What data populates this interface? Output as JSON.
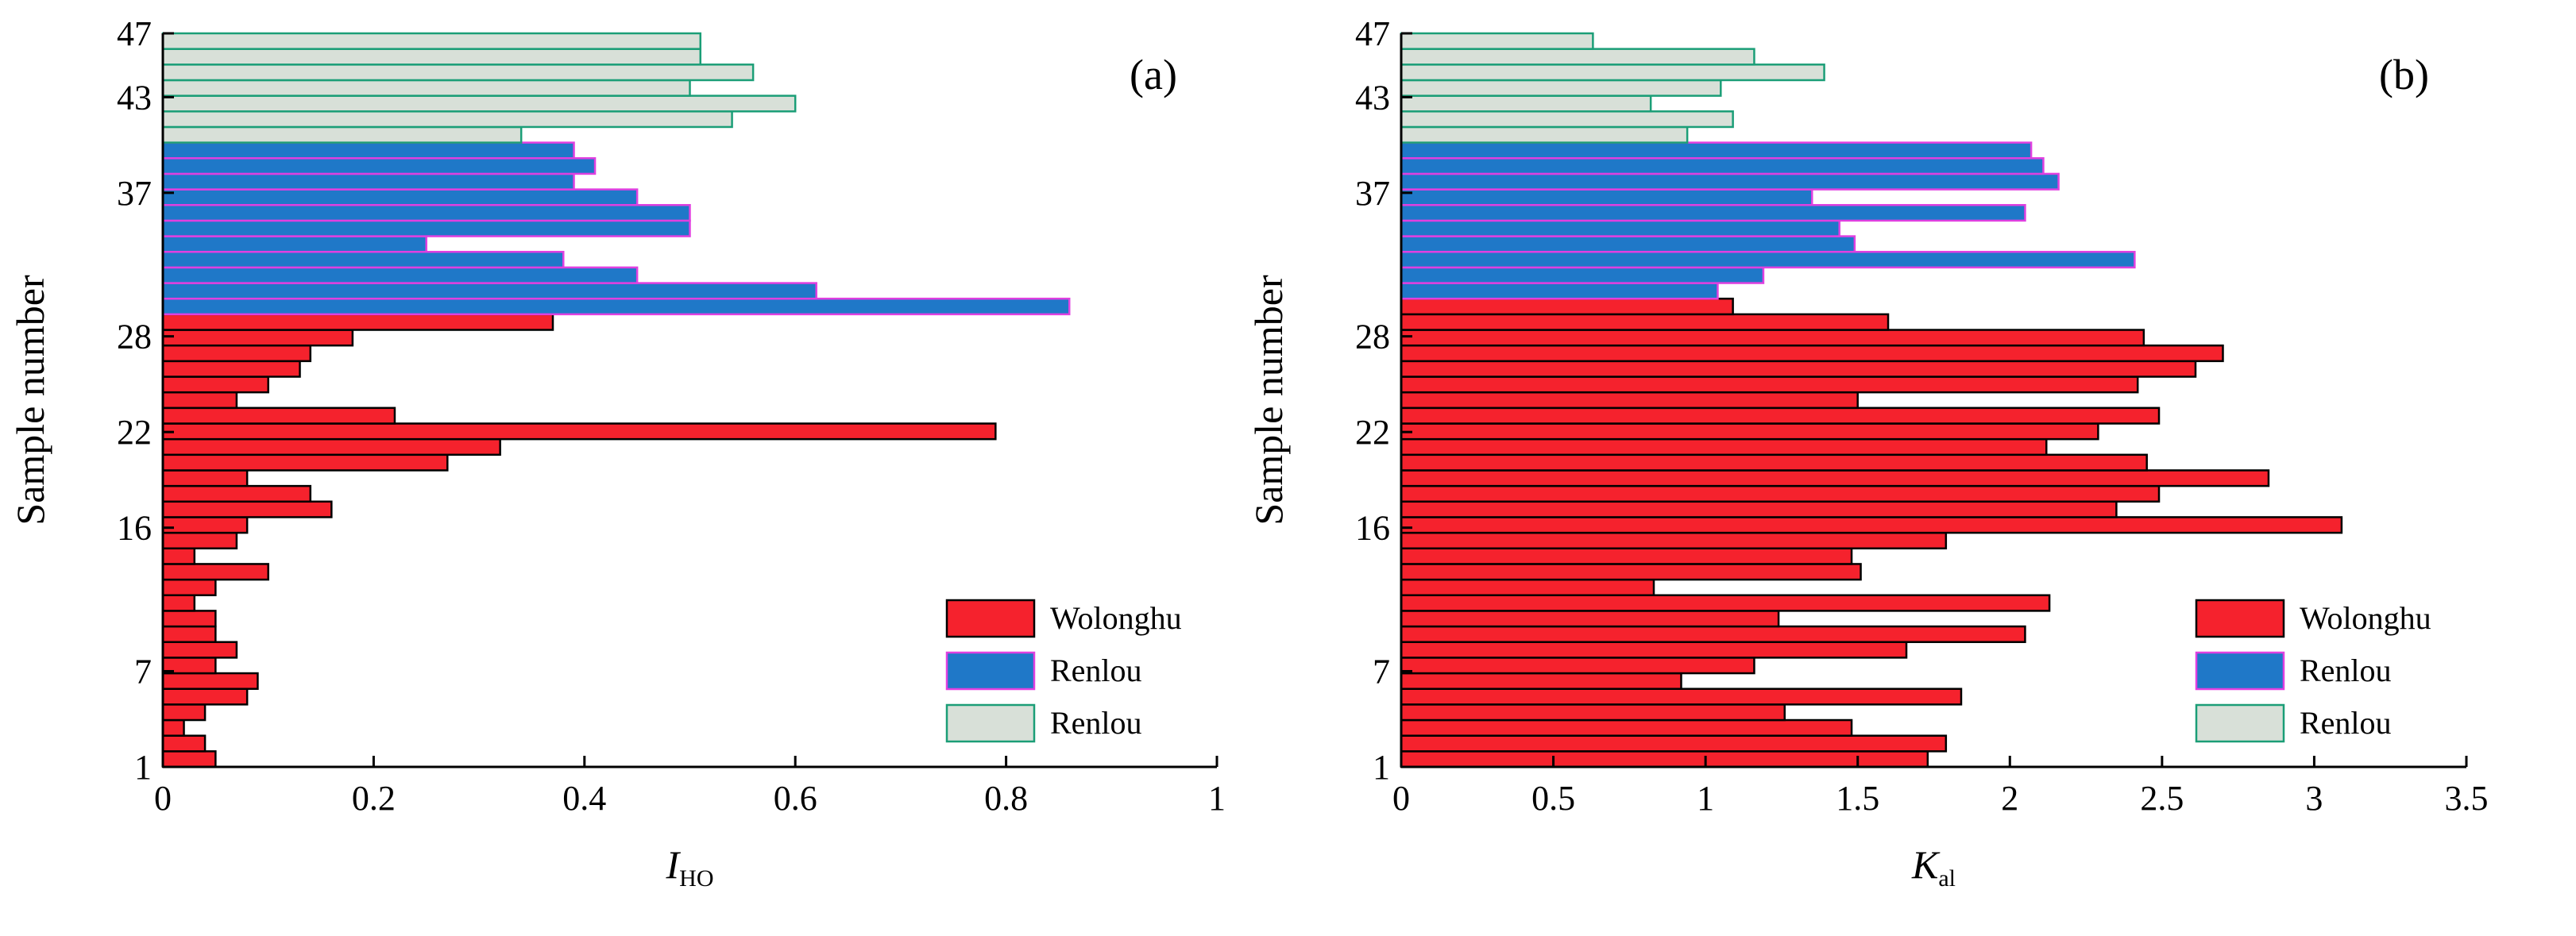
{
  "chart_data": [
    {
      "type": "bar",
      "orientation": "horizontal",
      "panel_label": "(a)",
      "xlabel_main": "I",
      "xlabel_sub": "HO",
      "ylabel": "Sample number",
      "xlim": [
        0,
        1
      ],
      "ylim": [
        1,
        47
      ],
      "xticks": [
        "0",
        "0.2",
        "0.4",
        "0.6",
        "0.8",
        "1"
      ],
      "xtick_values": [
        0,
        0.2,
        0.4,
        0.6,
        0.8,
        1
      ],
      "yticks": [
        "1",
        "7",
        "16",
        "22",
        "28",
        "37",
        "43",
        "47"
      ],
      "ytick_values": [
        1,
        7,
        16,
        22,
        28,
        37,
        43,
        47
      ],
      "grid": false,
      "legend_placement": "bottom-right",
      "legend": [
        {
          "label": "Wolonghu",
          "fill": "#f5222d",
          "stroke": "#000000"
        },
        {
          "label": "Renlou",
          "fill": "#1f78c8",
          "stroke": "#e040e0"
        },
        {
          "label": "Renlou",
          "fill": "#d8e0d8",
          "stroke": "#1b9e77"
        }
      ],
      "series": [
        {
          "group": 0,
          "samples": [
            1,
            2,
            3,
            4,
            5,
            6,
            7,
            8,
            9,
            10,
            11,
            12,
            13,
            14,
            15,
            16,
            17,
            18,
            19,
            20,
            21,
            22,
            23,
            24,
            25,
            26,
            27,
            28,
            29
          ],
          "values": [
            0.05,
            0.04,
            0.02,
            0.04,
            0.08,
            0.09,
            0.05,
            0.07,
            0.05,
            0.05,
            0.03,
            0.05,
            0.1,
            0.03,
            0.07,
            0.08,
            0.16,
            0.14,
            0.08,
            0.27,
            0.32,
            0.79,
            0.22,
            0.07,
            0.1,
            0.13,
            0.14,
            0.18,
            0.37
          ]
        },
        {
          "group": 1,
          "samples": [
            30,
            31,
            32,
            33,
            34,
            35,
            36,
            37,
            38,
            39,
            40
          ],
          "values": [
            0.86,
            0.62,
            0.45,
            0.38,
            0.25,
            0.5,
            0.5,
            0.45,
            0.39,
            0.41,
            0.39
          ]
        },
        {
          "group": 2,
          "samples": [
            41,
            42,
            43,
            44,
            45,
            46,
            47
          ],
          "values": [
            0.34,
            0.54,
            0.6,
            0.5,
            0.56,
            0.51,
            0.51
          ]
        }
      ]
    },
    {
      "type": "bar",
      "orientation": "horizontal",
      "panel_label": "(b)",
      "xlabel_main": "K",
      "xlabel_sub": "al",
      "ylabel": "Sample number",
      "xlim": [
        0,
        3.5
      ],
      "ylim": [
        1,
        47
      ],
      "xticks": [
        "0",
        "0.5",
        "1",
        "1.5",
        "2",
        "2.5",
        "3",
        "3.5"
      ],
      "xtick_values": [
        0,
        0.5,
        1,
        1.5,
        2,
        2.5,
        3,
        3.5
      ],
      "yticks": [
        "1",
        "7",
        "16",
        "22",
        "28",
        "37",
        "43",
        "47"
      ],
      "ytick_values": [
        1,
        7,
        16,
        22,
        28,
        37,
        43,
        47
      ],
      "grid": false,
      "legend_placement": "bottom-right",
      "legend": [
        {
          "label": "Wolonghu",
          "fill": "#f5222d",
          "stroke": "#000000"
        },
        {
          "label": "Renlou",
          "fill": "#1f78c8",
          "stroke": "#e040e0"
        },
        {
          "label": "Renlou",
          "fill": "#d8e0d8",
          "stroke": "#1b9e77"
        }
      ],
      "series": [
        {
          "group": 0,
          "samples": [
            1,
            2,
            3,
            4,
            5,
            6,
            7,
            8,
            9,
            10,
            11,
            12,
            13,
            14,
            15,
            16,
            17,
            18,
            19,
            20,
            21,
            22,
            23,
            24,
            25,
            26,
            27,
            28,
            29,
            30
          ],
          "values": [
            1.73,
            1.79,
            1.48,
            1.26,
            1.84,
            0.92,
            1.16,
            1.66,
            2.05,
            1.24,
            2.13,
            0.83,
            1.51,
            1.48,
            1.79,
            3.09,
            2.35,
            2.49,
            2.85,
            2.45,
            2.12,
            2.29,
            2.49,
            1.5,
            2.42,
            2.61,
            2.7,
            2.44,
            1.6,
            1.09
          ]
        },
        {
          "group": 1,
          "samples": [
            31,
            32,
            33,
            34,
            35,
            36,
            37,
            38,
            39,
            40
          ],
          "values": [
            1.04,
            1.19,
            2.41,
            1.49,
            1.44,
            2.05,
            1.35,
            2.16,
            2.11,
            2.07
          ]
        },
        {
          "group": 2,
          "samples": [
            41,
            42,
            43,
            44,
            45,
            46,
            47
          ],
          "values": [
            0.94,
            1.09,
            0.82,
            1.05,
            1.39,
            1.16,
            0.63
          ]
        }
      ]
    }
  ]
}
